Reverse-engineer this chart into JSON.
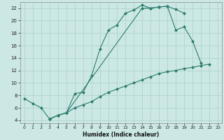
{
  "xlabel": "Humidex (Indice chaleur)",
  "background_color": "#cce8e5",
  "line_color": "#2d7d6e",
  "grid_color": "#aacfcc",
  "xlim": [
    -0.5,
    23.5
  ],
  "ylim": [
    3.5,
    23.0
  ],
  "yticks": [
    4,
    6,
    8,
    10,
    12,
    14,
    16,
    18,
    20,
    22
  ],
  "xticks": [
    0,
    1,
    2,
    3,
    4,
    5,
    6,
    7,
    8,
    9,
    10,
    11,
    12,
    13,
    14,
    15,
    16,
    17,
    18,
    19,
    20,
    21,
    22,
    23
  ],
  "series1_x": [
    0,
    1,
    2,
    3,
    4,
    5,
    6,
    7,
    8,
    9,
    10,
    11,
    12,
    13,
    14,
    15,
    16,
    17,
    18,
    19
  ],
  "series1_y": [
    7.5,
    6.7,
    6.0,
    4.2,
    4.8,
    5.2,
    8.3,
    8.5,
    11.2,
    15.5,
    18.5,
    19.3,
    21.2,
    21.7,
    22.5,
    22.0,
    22.2,
    22.3,
    21.8,
    21.2
  ],
  "series2_x": [
    3,
    4,
    5,
    14,
    15,
    16,
    17,
    18,
    19,
    20,
    21
  ],
  "series2_y": [
    4.2,
    4.8,
    5.2,
    22.0,
    22.0,
    22.2,
    22.3,
    18.5,
    19.0,
    16.7,
    13.2
  ],
  "series3_x": [
    3,
    4,
    5,
    6,
    7,
    8,
    9,
    10,
    11,
    12,
    13,
    14,
    15,
    16,
    17,
    18,
    19,
    20,
    21,
    22
  ],
  "series3_y": [
    4.2,
    4.8,
    5.2,
    6.0,
    6.5,
    7.0,
    7.8,
    8.5,
    9.0,
    9.5,
    10.0,
    10.5,
    11.0,
    11.5,
    11.8,
    12.0,
    12.3,
    12.5,
    12.8,
    13.0
  ]
}
